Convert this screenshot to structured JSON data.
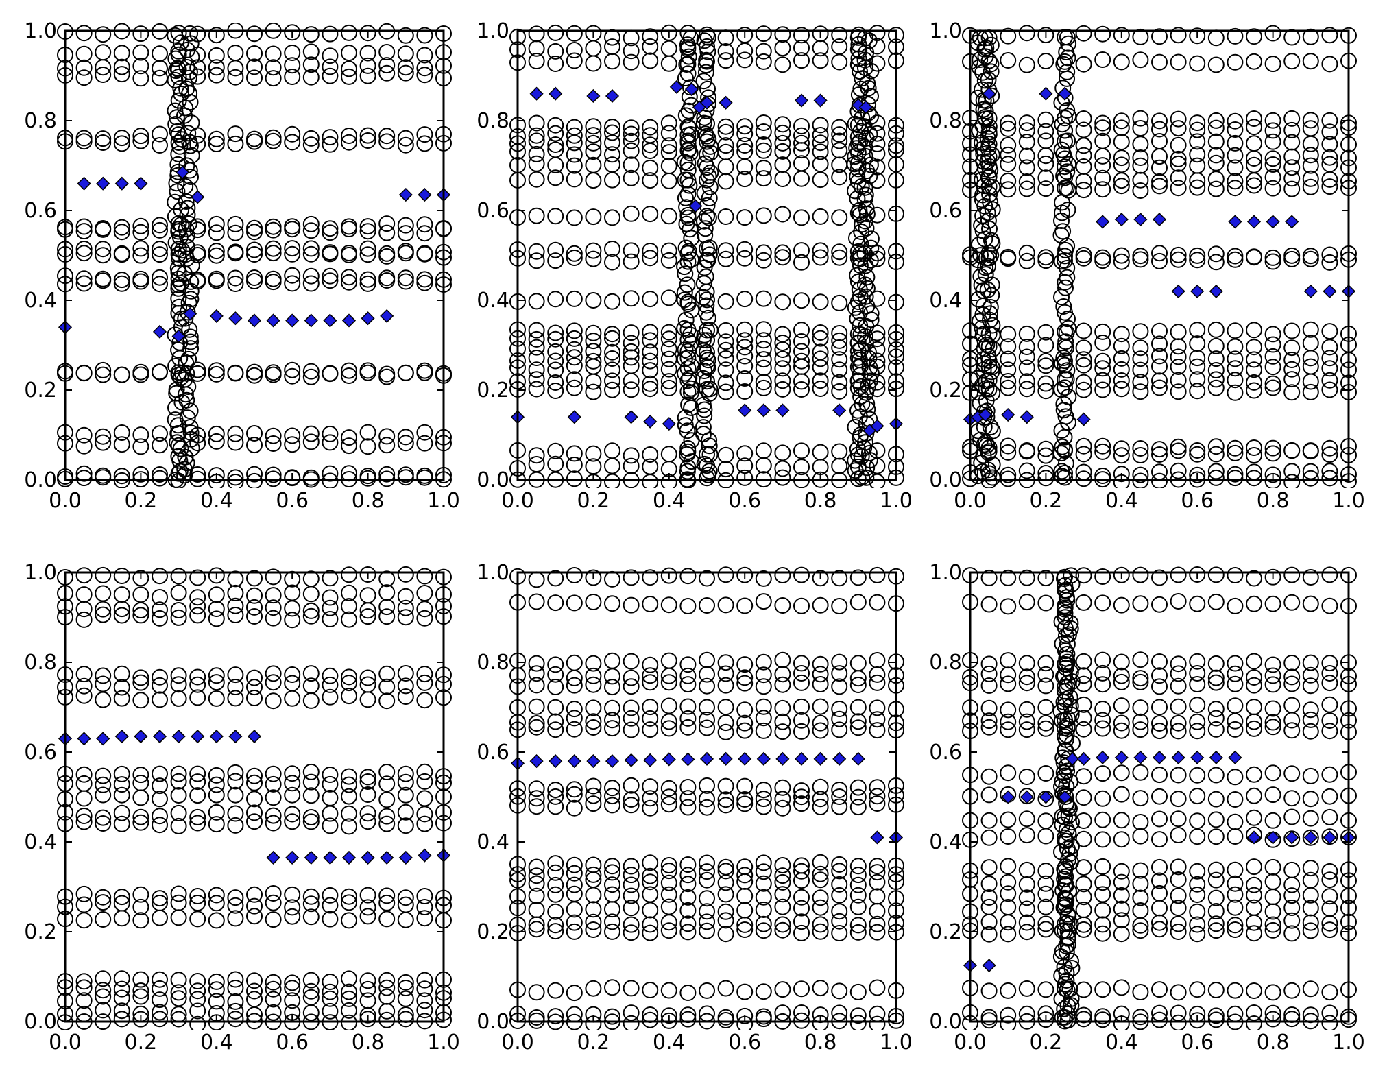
{
  "chart_data": [
    {
      "type": "scatter",
      "xlim": [
        0,
        1
      ],
      "ylim": [
        0,
        1
      ],
      "xticks": [
        "0.0",
        "0.2",
        "0.4",
        "0.6",
        "0.8",
        "1.0"
      ],
      "yticks": [
        "0.0",
        "0.2",
        "0.4",
        "0.6",
        "0.8",
        "1.0"
      ],
      "series": [
        {
          "marker": "open-circle",
          "x_step": 0.05,
          "x_range": [
            0,
            1
          ],
          "levels": [
            0.0,
            0.01,
            0.08,
            0.1,
            0.235,
            0.24,
            0.44,
            0.45,
            0.5,
            0.51,
            0.555,
            0.565,
            0.75,
            0.765,
            0.9,
            0.92,
            0.95,
            0.995
          ],
          "wiggle_x": [
            0.3,
            0.325
          ]
        },
        {
          "marker": "filled-diamond",
          "color": "#1a1adb",
          "points": [
            [
              0.0,
              0.34
            ],
            [
              0.05,
              0.66
            ],
            [
              0.1,
              0.66
            ],
            [
              0.15,
              0.66
            ],
            [
              0.2,
              0.66
            ],
            [
              0.25,
              0.33
            ],
            [
              0.3,
              0.32
            ],
            [
              0.31,
              0.685
            ],
            [
              0.33,
              0.37
            ],
            [
              0.35,
              0.63
            ],
            [
              0.4,
              0.365
            ],
            [
              0.45,
              0.36
            ],
            [
              0.5,
              0.355
            ],
            [
              0.55,
              0.355
            ],
            [
              0.6,
              0.355
            ],
            [
              0.65,
              0.355
            ],
            [
              0.7,
              0.355
            ],
            [
              0.75,
              0.355
            ],
            [
              0.8,
              0.36
            ],
            [
              0.85,
              0.365
            ],
            [
              0.9,
              0.635
            ],
            [
              0.95,
              0.635
            ],
            [
              1.0,
              0.635
            ]
          ]
        }
      ]
    },
    {
      "type": "scatter",
      "xlim": [
        0,
        1
      ],
      "ylim": [
        0,
        1
      ],
      "xticks": [
        "0.0",
        "0.2",
        "0.4",
        "0.6",
        "0.8",
        "1.0"
      ],
      "yticks": [
        "0.0",
        "0.2",
        "0.4",
        "0.6",
        "0.8",
        "1.0"
      ],
      "series": [
        {
          "marker": "open-circle",
          "x_step": 0.05,
          "x_range": [
            0,
            1
          ],
          "levels": [
            0.0,
            0.03,
            0.06,
            0.2,
            0.22,
            0.25,
            0.27,
            0.29,
            0.31,
            0.33,
            0.4,
            0.49,
            0.51,
            0.59,
            0.67,
            0.7,
            0.73,
            0.75,
            0.77,
            0.79,
            0.93,
            0.96,
            0.99
          ],
          "wiggle_x": [
            0.45,
            0.5,
            0.9,
            0.925
          ]
        },
        {
          "marker": "filled-diamond",
          "color": "#1a1adb",
          "points": [
            [
              0.0,
              0.14
            ],
            [
              0.05,
              0.86
            ],
            [
              0.1,
              0.86
            ],
            [
              0.15,
              0.14
            ],
            [
              0.2,
              0.855
            ],
            [
              0.25,
              0.855
            ],
            [
              0.3,
              0.14
            ],
            [
              0.35,
              0.13
            ],
            [
              0.4,
              0.125
            ],
            [
              0.42,
              0.875
            ],
            [
              0.46,
              0.87
            ],
            [
              0.47,
              0.61
            ],
            [
              0.48,
              0.83
            ],
            [
              0.5,
              0.84
            ],
            [
              0.55,
              0.84
            ],
            [
              0.6,
              0.155
            ],
            [
              0.65,
              0.155
            ],
            [
              0.7,
              0.155
            ],
            [
              0.75,
              0.845
            ],
            [
              0.8,
              0.845
            ],
            [
              0.85,
              0.155
            ],
            [
              0.9,
              0.835
            ],
            [
              0.92,
              0.83
            ],
            [
              0.93,
              0.11
            ],
            [
              0.95,
              0.12
            ],
            [
              1.0,
              0.125
            ]
          ]
        }
      ]
    },
    {
      "type": "scatter",
      "xlim": [
        0,
        1
      ],
      "ylim": [
        0,
        1
      ],
      "xticks": [
        "0.0",
        "0.2",
        "0.4",
        "0.6",
        "0.8",
        "1.0"
      ],
      "yticks": [
        "0.0",
        "0.2",
        "0.4",
        "0.6",
        "0.8",
        "1.0"
      ],
      "series": [
        {
          "marker": "open-circle",
          "x_step": 0.05,
          "x_range": [
            0,
            1
          ],
          "levels": [
            0.0,
            0.015,
            0.06,
            0.07,
            0.2,
            0.22,
            0.25,
            0.27,
            0.3,
            0.33,
            0.49,
            0.5,
            0.65,
            0.67,
            0.7,
            0.72,
            0.75,
            0.78,
            0.8,
            0.93,
            0.99
          ],
          "wiggle_x": [
            0.03,
            0.05,
            0.25
          ]
        },
        {
          "marker": "filled-diamond",
          "color": "#1a1adb",
          "points": [
            [
              0.0,
              0.135
            ],
            [
              0.02,
              0.14
            ],
            [
              0.04,
              0.145
            ],
            [
              0.05,
              0.86
            ],
            [
              0.1,
              0.145
            ],
            [
              0.15,
              0.14
            ],
            [
              0.2,
              0.86
            ],
            [
              0.25,
              0.86
            ],
            [
              0.3,
              0.135
            ],
            [
              0.35,
              0.575
            ],
            [
              0.4,
              0.58
            ],
            [
              0.45,
              0.58
            ],
            [
              0.5,
              0.58
            ],
            [
              0.55,
              0.42
            ],
            [
              0.6,
              0.42
            ],
            [
              0.65,
              0.42
            ],
            [
              0.7,
              0.575
            ],
            [
              0.75,
              0.575
            ],
            [
              0.8,
              0.575
            ],
            [
              0.85,
              0.575
            ],
            [
              0.9,
              0.42
            ],
            [
              0.95,
              0.42
            ],
            [
              1.0,
              0.42
            ]
          ]
        }
      ]
    },
    {
      "type": "scatter",
      "xlim": [
        0,
        1
      ],
      "ylim": [
        0,
        1
      ],
      "xticks": [
        "0.0",
        "0.2",
        "0.4",
        "0.6",
        "0.8",
        "1.0"
      ],
      "yticks": [
        "0.0",
        "0.2",
        "0.4",
        "0.6",
        "0.8",
        "1.0"
      ],
      "series": [
        {
          "marker": "open-circle",
          "x_step": 0.05,
          "x_range": [
            0,
            1
          ],
          "levels": [
            0.0,
            0.02,
            0.05,
            0.07,
            0.09,
            0.23,
            0.26,
            0.28,
            0.44,
            0.46,
            0.5,
            0.53,
            0.55,
            0.72,
            0.75,
            0.77,
            0.9,
            0.92,
            0.95,
            0.99
          ],
          "wiggle_x": []
        },
        {
          "marker": "filled-diamond",
          "color": "#1a1adb",
          "points": [
            [
              0.0,
              0.63
            ],
            [
              0.05,
              0.63
            ],
            [
              0.1,
              0.63
            ],
            [
              0.15,
              0.635
            ],
            [
              0.2,
              0.635
            ],
            [
              0.25,
              0.635
            ],
            [
              0.3,
              0.635
            ],
            [
              0.35,
              0.635
            ],
            [
              0.4,
              0.635
            ],
            [
              0.45,
              0.635
            ],
            [
              0.5,
              0.635
            ],
            [
              0.55,
              0.365
            ],
            [
              0.6,
              0.365
            ],
            [
              0.65,
              0.365
            ],
            [
              0.7,
              0.365
            ],
            [
              0.75,
              0.365
            ],
            [
              0.8,
              0.365
            ],
            [
              0.85,
              0.365
            ],
            [
              0.9,
              0.365
            ],
            [
              0.95,
              0.37
            ],
            [
              1.0,
              0.37
            ]
          ]
        }
      ]
    },
    {
      "type": "scatter",
      "xlim": [
        0,
        1
      ],
      "ylim": [
        0,
        1
      ],
      "xticks": [
        "0.0",
        "0.2",
        "0.4",
        "0.6",
        "0.8",
        "1.0"
      ],
      "yticks": [
        "0.0",
        "0.2",
        "0.4",
        "0.6",
        "0.8",
        "1.0"
      ],
      "series": [
        {
          "marker": "open-circle",
          "x_step": 0.05,
          "x_range": [
            0,
            1
          ],
          "levels": [
            0.0,
            0.015,
            0.07,
            0.2,
            0.22,
            0.25,
            0.28,
            0.31,
            0.33,
            0.35,
            0.48,
            0.5,
            0.52,
            0.65,
            0.67,
            0.7,
            0.75,
            0.77,
            0.8,
            0.93,
            0.99
          ],
          "wiggle_x": []
        },
        {
          "marker": "filled-diamond",
          "color": "#1a1adb",
          "points": [
            [
              0.0,
              0.575
            ],
            [
              0.05,
              0.58
            ],
            [
              0.1,
              0.58
            ],
            [
              0.15,
              0.58
            ],
            [
              0.2,
              0.58
            ],
            [
              0.25,
              0.58
            ],
            [
              0.3,
              0.582
            ],
            [
              0.35,
              0.582
            ],
            [
              0.4,
              0.584
            ],
            [
              0.45,
              0.584
            ],
            [
              0.5,
              0.585
            ],
            [
              0.55,
              0.585
            ],
            [
              0.6,
              0.585
            ],
            [
              0.65,
              0.585
            ],
            [
              0.7,
              0.585
            ],
            [
              0.75,
              0.585
            ],
            [
              0.8,
              0.585
            ],
            [
              0.85,
              0.585
            ],
            [
              0.9,
              0.585
            ],
            [
              0.95,
              0.41
            ],
            [
              1.0,
              0.41
            ]
          ]
        }
      ]
    },
    {
      "type": "scatter",
      "xlim": [
        0,
        1
      ],
      "ylim": [
        0,
        1
      ],
      "xticks": [
        "0.0",
        "0.2",
        "0.4",
        "0.6",
        "0.8",
        "1.0"
      ],
      "yticks": [
        "0.0",
        "0.2",
        "0.4",
        "0.6",
        "0.8",
        "1.0"
      ],
      "series": [
        {
          "marker": "open-circle",
          "x_step": 0.05,
          "x_range": [
            0,
            1
          ],
          "levels": [
            0.0,
            0.015,
            0.07,
            0.2,
            0.22,
            0.25,
            0.28,
            0.31,
            0.34,
            0.41,
            0.45,
            0.5,
            0.55,
            0.65,
            0.67,
            0.7,
            0.75,
            0.77,
            0.8,
            0.93,
            0.99
          ],
          "wiggle_x": [
            0.25,
            0.26
          ]
        },
        {
          "marker": "filled-diamond",
          "color": "#1a1adb",
          "points": [
            [
              0.0,
              0.125
            ],
            [
              0.05,
              0.125
            ],
            [
              0.1,
              0.5
            ],
            [
              0.15,
              0.5
            ],
            [
              0.2,
              0.5
            ],
            [
              0.25,
              0.5
            ],
            [
              0.27,
              0.585
            ],
            [
              0.3,
              0.585
            ],
            [
              0.35,
              0.588
            ],
            [
              0.4,
              0.588
            ],
            [
              0.45,
              0.588
            ],
            [
              0.5,
              0.588
            ],
            [
              0.55,
              0.588
            ],
            [
              0.6,
              0.588
            ],
            [
              0.65,
              0.588
            ],
            [
              0.7,
              0.588
            ],
            [
              0.75,
              0.41
            ],
            [
              0.8,
              0.41
            ],
            [
              0.85,
              0.41
            ],
            [
              0.9,
              0.41
            ],
            [
              0.95,
              0.41
            ],
            [
              1.0,
              0.41
            ]
          ]
        }
      ]
    }
  ]
}
